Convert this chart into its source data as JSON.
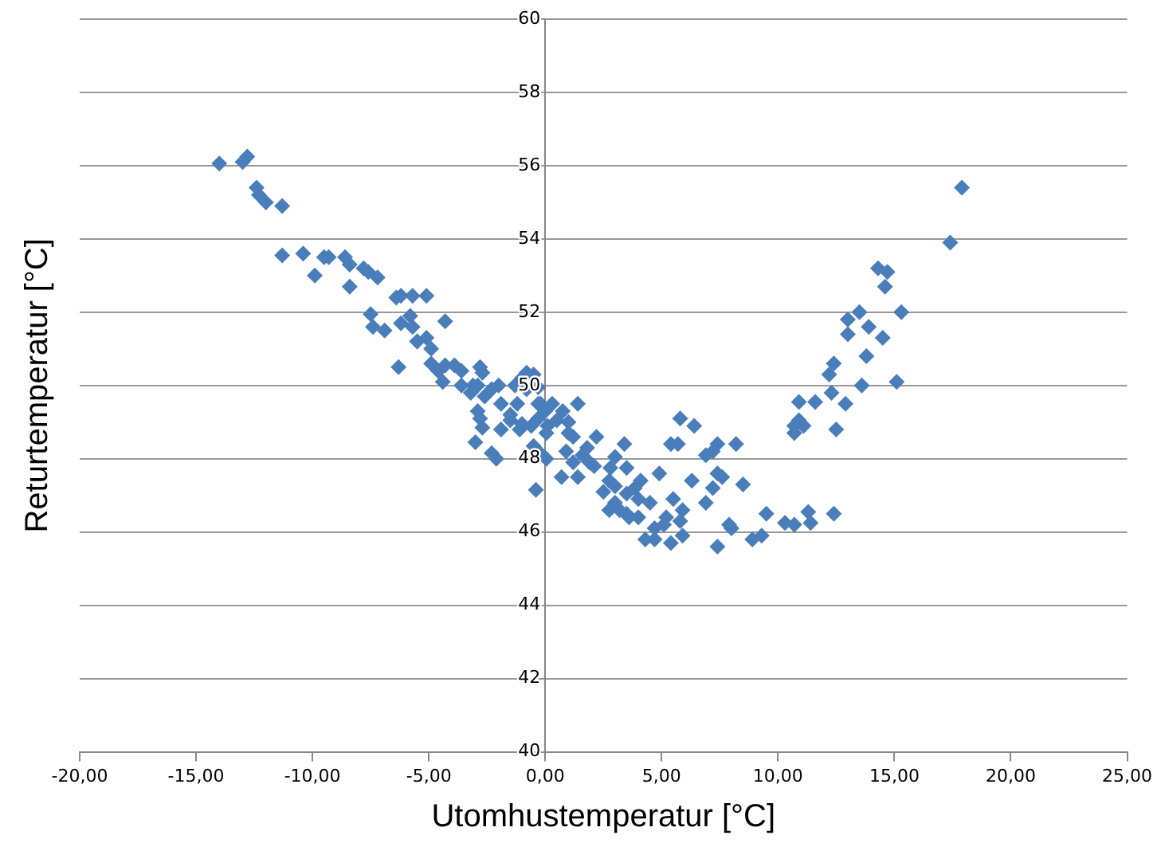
{
  "chart_data": {
    "type": "scatter",
    "xlabel": "Utomhustemperatur [°C]",
    "ylabel": "Returtemperatur [°C]",
    "marker": "diamond",
    "grid": "y",
    "legend": false,
    "xlim": [
      -20,
      25
    ],
    "xticks": [
      {
        "value": -20,
        "label": "-20,00"
      },
      {
        "value": -15,
        "label": "-15,00"
      },
      {
        "value": -10,
        "label": "-10,00"
      },
      {
        "value": -5,
        "label": "-5,00"
      },
      {
        "value": 0,
        "label": "0,00"
      },
      {
        "value": 5,
        "label": "5,00"
      },
      {
        "value": 10,
        "label": "10,00"
      },
      {
        "value": 15,
        "label": "15,00"
      },
      {
        "value": 20,
        "label": "20,00"
      },
      {
        "value": 25,
        "label": "25,00"
      }
    ],
    "ylim": [
      40,
      60
    ],
    "yticks": [
      40,
      42,
      44,
      46,
      48,
      50,
      52,
      54,
      56,
      58,
      60
    ],
    "series": [
      {
        "color": "#4a7ebb",
        "x": [
          -14.0,
          -13.0,
          -12.8,
          -12.4,
          -12.3,
          -12.0,
          -11.3,
          -11.3,
          -10.4,
          -9.9,
          -9.5,
          -9.3,
          -8.6,
          -8.4,
          -8.4,
          -7.8,
          -7.6,
          -7.2,
          -7.5,
          -7.4,
          -6.9,
          -6.4,
          -6.2,
          -5.7,
          -5.1,
          -6.3,
          -6.2,
          -5.8,
          -5.7,
          -5.5,
          -5.5,
          -5.1,
          -4.9,
          -4.3,
          -4.9,
          -4.6,
          -4.3,
          -4.4,
          -3.9,
          -3.6,
          -3.6,
          -3.1,
          -2.9,
          -3.2,
          -2.6,
          -2.8,
          -2.7,
          -2.9,
          -2.8,
          -2.7,
          -3.0,
          -2.3,
          -2.1,
          -1.9,
          -1.5,
          -2.3,
          -2.0,
          -1.3,
          -1.0,
          -1.9,
          -1.5,
          -1.2,
          -0.8,
          -0.5,
          -0.3,
          -0.2,
          -1.0,
          -0.6,
          -0.3,
          -0.5,
          -0.3,
          -1.1,
          -0.8,
          -0.3,
          0.0,
          0.1,
          0.05,
          -0.4,
          0.05,
          0.3,
          0.5,
          0.75,
          1.0,
          1.4,
          1.0,
          1.2,
          0.9,
          0.7,
          1.2,
          1.6,
          1.8,
          2.2,
          1.9,
          1.4,
          2.1,
          2.8,
          3.0,
          2.5,
          3.0,
          2.75,
          3.0,
          2.75,
          3.2,
          3.5,
          3.5,
          3.4,
          3.5,
          3.85,
          4.1,
          4.0,
          4.0,
          3.6,
          4.5,
          4.3,
          4.7,
          4.7,
          5.1,
          5.2,
          4.9,
          5.4,
          5.7,
          5.5,
          5.8,
          5.4,
          5.9,
          5.8,
          6.4,
          6.3,
          5.9,
          6.9,
          7.2,
          6.9,
          7.2,
          7.4,
          7.4,
          7.6,
          7.4,
          7.9,
          8.2,
          8.5,
          8.9,
          9.3,
          8.0,
          9.5,
          10.3,
          10.7,
          11.4,
          11.3,
          12.4,
          10.7,
          10.9,
          11.1,
          10.7,
          10.9,
          11.6,
          12.3,
          12.9,
          12.5,
          12.2,
          12.4,
          13.6,
          13.8,
          13.0,
          13.0,
          13.5,
          13.9,
          14.5,
          15.3,
          15.1,
          14.3,
          14.7,
          14.6,
          17.4,
          17.9
        ],
        "values": [
          56.06,
          56.1,
          56.25,
          55.4,
          55.2,
          55.0,
          54.9,
          53.55,
          53.6,
          53.0,
          53.5,
          53.5,
          53.5,
          53.3,
          52.7,
          53.2,
          53.1,
          52.95,
          51.95,
          51.6,
          51.5,
          52.4,
          52.45,
          52.45,
          52.45,
          50.5,
          51.7,
          51.9,
          51.6,
          51.2,
          51.2,
          51.3,
          51.0,
          51.75,
          50.6,
          50.4,
          50.55,
          50.1,
          50.55,
          50.4,
          50.0,
          50.0,
          50.0,
          49.8,
          49.7,
          50.5,
          50.35,
          49.3,
          49.1,
          48.85,
          48.45,
          48.15,
          48.0,
          48.8,
          49.05,
          49.9,
          50.0,
          50.0,
          50.2,
          49.5,
          49.2,
          49.5,
          49.9,
          50.3,
          49.95,
          49.5,
          48.95,
          48.9,
          49.1,
          48.35,
          48.2,
          48.8,
          50.35,
          49.5,
          49.3,
          48.9,
          48.0,
          47.15,
          48.7,
          49.5,
          49.05,
          49.3,
          49.0,
          49.5,
          48.7,
          48.6,
          48.2,
          47.5,
          47.9,
          48.1,
          48.3,
          48.6,
          47.9,
          47.5,
          47.8,
          47.75,
          48.05,
          47.1,
          46.8,
          47.4,
          47.25,
          46.6,
          46.6,
          47.75,
          47.05,
          48.4,
          46.5,
          47.2,
          47.4,
          46.9,
          46.4,
          46.4,
          46.8,
          45.8,
          45.8,
          46.1,
          46.2,
          46.4,
          47.6,
          48.4,
          48.4,
          46.9,
          46.3,
          45.7,
          45.9,
          49.1,
          48.9,
          47.4,
          46.6,
          48.1,
          48.2,
          46.8,
          47.2,
          48.4,
          47.6,
          47.5,
          45.6,
          46.2,
          48.4,
          47.3,
          45.8,
          45.9,
          46.1,
          46.5,
          46.25,
          46.2,
          46.25,
          46.55,
          46.5,
          48.9,
          49.05,
          48.9,
          48.7,
          49.55,
          49.55,
          49.8,
          49.5,
          48.8,
          50.3,
          50.6,
          50.0,
          50.8,
          51.4,
          51.8,
          52.0,
          51.6,
          51.3,
          52.0,
          50.1,
          53.2,
          53.1,
          52.7,
          53.9,
          55.4
        ]
      }
    ]
  }
}
